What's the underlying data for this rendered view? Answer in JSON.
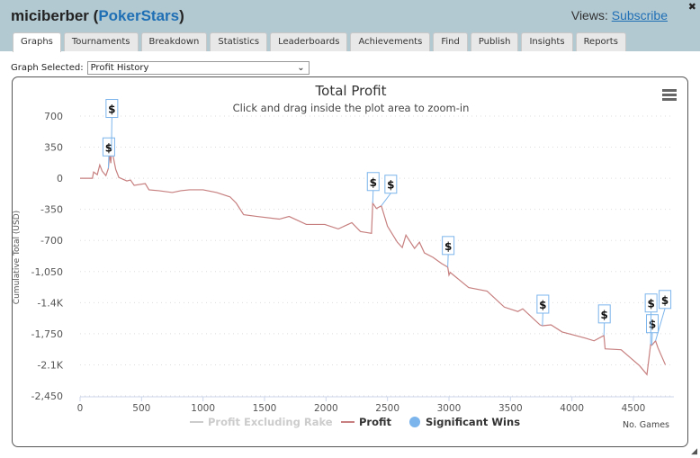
{
  "header": {
    "user": "miciberber",
    "site": "PokerStars",
    "views_label": "Views:",
    "views_link": "Subscribe"
  },
  "tabs": [
    {
      "label": "Graphs",
      "active": true
    },
    {
      "label": "Tournaments"
    },
    {
      "label": "Breakdown"
    },
    {
      "label": "Statistics"
    },
    {
      "label": "Leaderboards"
    },
    {
      "label": "Achievements"
    },
    {
      "label": "Find"
    },
    {
      "label": "Publish"
    },
    {
      "label": "Insights"
    },
    {
      "label": "Reports"
    }
  ],
  "graph_select": {
    "label": "Graph Selected:",
    "value": "Profit History"
  },
  "chart_data": {
    "type": "line",
    "title": "Total Profit",
    "subtitle": "Click and drag inside the plot area to zoom-in",
    "xlabel": "No. Games",
    "ylabel": "Cumulative Total (USD)",
    "xlim": [
      0,
      4800
    ],
    "ylim": [
      -2450,
      700
    ],
    "x_ticks": [
      "0",
      "500",
      "1000",
      "1500",
      "2000",
      "2500",
      "3000",
      "3500",
      "4000",
      "4500"
    ],
    "x_tick_values": [
      0,
      500,
      1000,
      1500,
      2000,
      2500,
      3000,
      3500,
      4000,
      4500
    ],
    "y_ticks": [
      "700",
      "350",
      "0",
      "-350",
      "-700",
      "-1,050",
      "-1.4K",
      "-1,750",
      "-2.1K",
      "-2,450"
    ],
    "y_tick_values": [
      700,
      350,
      0,
      -350,
      -700,
      -1050,
      -1400,
      -1750,
      -2100,
      -2450
    ],
    "grid": "horizontal dotted",
    "legend": {
      "placement": "bottom",
      "items": [
        {
          "name": "Profit Excluding Rake",
          "color": "#cccccc",
          "hidden": true
        },
        {
          "name": "Profit",
          "color": "#c77f7f"
        },
        {
          "name": "Significant Wins",
          "color": "#7cb5ec"
        }
      ]
    },
    "series": [
      {
        "name": "Profit",
        "color": "#c77f7f",
        "points": [
          [
            0,
            0
          ],
          [
            100,
            0
          ],
          [
            110,
            70
          ],
          [
            140,
            40
          ],
          [
            160,
            150
          ],
          [
            180,
            80
          ],
          [
            210,
            30
          ],
          [
            230,
            110
          ],
          [
            240,
            270
          ],
          [
            250,
            170
          ],
          [
            255,
            320
          ],
          [
            270,
            240
          ],
          [
            290,
            100
          ],
          [
            315,
            10
          ],
          [
            380,
            -30
          ],
          [
            410,
            -20
          ],
          [
            440,
            -80
          ],
          [
            530,
            -60
          ],
          [
            560,
            -130
          ],
          [
            640,
            -140
          ],
          [
            750,
            -160
          ],
          [
            820,
            -140
          ],
          [
            890,
            -130
          ],
          [
            1000,
            -130
          ],
          [
            1110,
            -160
          ],
          [
            1220,
            -210
          ],
          [
            1270,
            -280
          ],
          [
            1330,
            -410
          ],
          [
            1440,
            -430
          ],
          [
            1620,
            -460
          ],
          [
            1700,
            -430
          ],
          [
            1840,
            -520
          ],
          [
            1990,
            -520
          ],
          [
            2100,
            -570
          ],
          [
            2210,
            -500
          ],
          [
            2280,
            -600
          ],
          [
            2370,
            -620
          ],
          [
            2380,
            -280
          ],
          [
            2410,
            -340
          ],
          [
            2450,
            -310
          ],
          [
            2500,
            -540
          ],
          [
            2580,
            -720
          ],
          [
            2620,
            -780
          ],
          [
            2650,
            -640
          ],
          [
            2720,
            -790
          ],
          [
            2760,
            -720
          ],
          [
            2800,
            -840
          ],
          [
            2870,
            -890
          ],
          [
            2940,
            -960
          ],
          [
            2990,
            -1000
          ],
          [
            3000,
            -1090
          ],
          [
            3010,
            -1060
          ],
          [
            3160,
            -1230
          ],
          [
            3310,
            -1270
          ],
          [
            3450,
            -1450
          ],
          [
            3560,
            -1500
          ],
          [
            3600,
            -1470
          ],
          [
            3740,
            -1650
          ],
          [
            3760,
            -1660
          ],
          [
            3830,
            -1650
          ],
          [
            3920,
            -1730
          ],
          [
            4110,
            -1800
          ],
          [
            4180,
            -1830
          ],
          [
            4260,
            -1770
          ],
          [
            4270,
            -1920
          ],
          [
            4400,
            -1930
          ],
          [
            4550,
            -2110
          ],
          [
            4610,
            -2210
          ],
          [
            4640,
            -1870
          ],
          [
            4650,
            -1880
          ],
          [
            4680,
            -1830
          ],
          [
            4700,
            -1910
          ],
          [
            4760,
            -2100
          ]
        ]
      }
    ],
    "significant_wins": {
      "label": "$",
      "points": [
        [
          230,
          110
        ],
        [
          255,
          320
        ],
        [
          2380,
          -280
        ],
        [
          2450,
          -310
        ],
        [
          2990,
          -1000
        ],
        [
          3760,
          -1660
        ],
        [
          4260,
          -1770
        ],
        [
          4650,
          -1880
        ],
        [
          4640,
          -1870
        ],
        [
          4680,
          -1830
        ]
      ]
    }
  }
}
